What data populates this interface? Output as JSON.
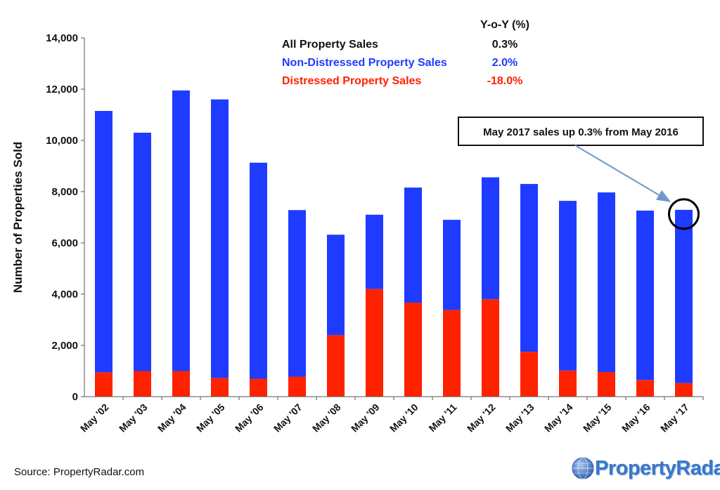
{
  "chart_data": {
    "type": "bar",
    "stacked": true,
    "categories": [
      "May '02",
      "May '03",
      "May '04",
      "May '05",
      "May '06",
      "May '07",
      "May '08",
      "May '09",
      "May '10",
      "May '11",
      "May '12",
      "May '13",
      "May '14",
      "May '15",
      "May '16",
      "May '17"
    ],
    "series": [
      {
        "name": "Distressed Property Sales",
        "color": "#ff2200",
        "values": [
          950,
          1000,
          1000,
          730,
          700,
          780,
          2400,
          4200,
          3670,
          3380,
          3800,
          1750,
          1020,
          960,
          650,
          530
        ]
      },
      {
        "name": "Non-Distressed Property Sales",
        "color": "#1f3bff",
        "values": [
          10200,
          9300,
          10950,
          10870,
          8430,
          6500,
          3920,
          2900,
          4490,
          3520,
          4760,
          6550,
          6620,
          7010,
          6610,
          6760
        ]
      }
    ],
    "ylabel": "Number of Properties Sold",
    "ylim": [
      0,
      14000
    ],
    "yticks": [
      "0",
      "2,000",
      "4,000",
      "6,000",
      "8,000",
      "10,000",
      "12,000",
      "14,000"
    ],
    "legend": {
      "header": "Y-o-Y (%)",
      "rows": [
        {
          "label": "All Property Sales",
          "value": "0.3%",
          "color": "#111111"
        },
        {
          "label": "Non-Distressed Property Sales",
          "value": "2.0%",
          "color": "#1f3bff"
        },
        {
          "label": "Distressed Property Sales",
          "value": "-18.0%",
          "color": "#ff2200"
        }
      ]
    },
    "annotation": {
      "text": "May 2017 sales up 0.3% from May 2016",
      "target_category": "May '17"
    }
  },
  "footer": {
    "source": "Source: PropertyRadar.com",
    "logo_text": "PropertyRadar",
    "logo_mark": "®"
  },
  "icons": {
    "logo": "radar-globe-icon"
  }
}
